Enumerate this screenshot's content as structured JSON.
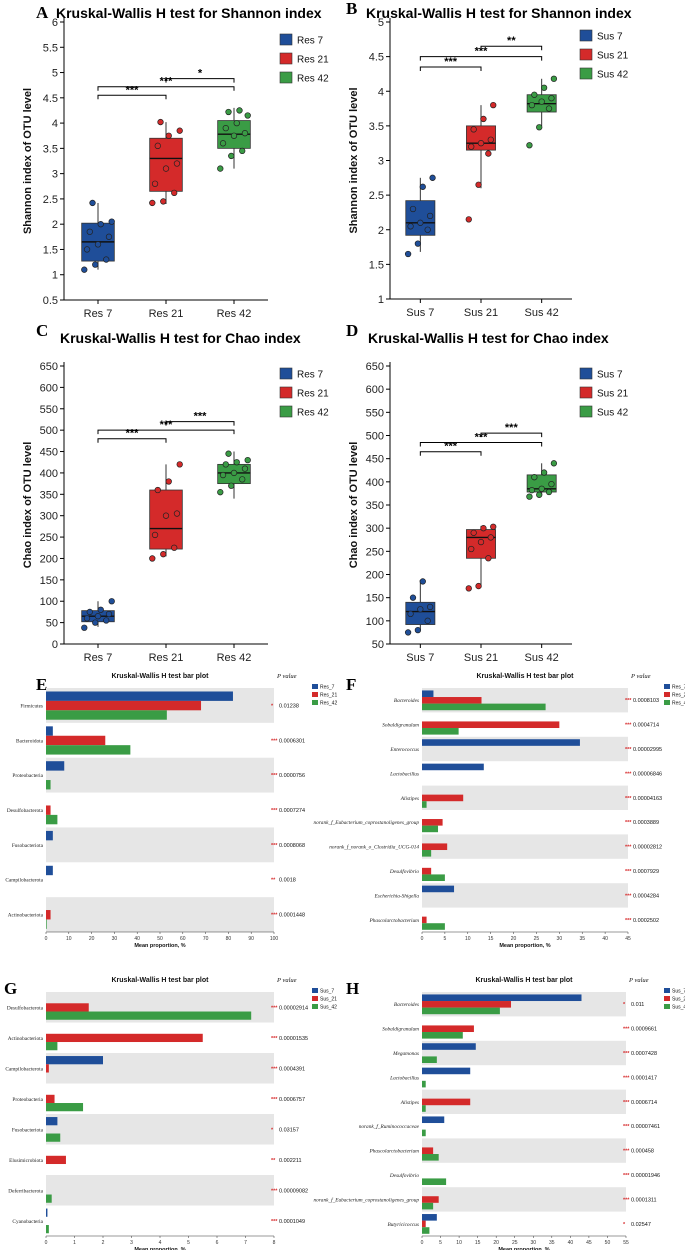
{
  "colors": {
    "day7": "#1f4e99",
    "day21": "#d42a2a",
    "day42": "#3a9c45",
    "grid_band": "#e6e6e6",
    "star": "#d62728"
  },
  "chart_data": [
    {
      "id": "A",
      "type": "box",
      "letter": "A",
      "title": "Kruskal-Wallis H test for Shannon index",
      "ylabel": "Shannon index of OTU level",
      "ylim": [
        0.5,
        6
      ],
      "yticks": [
        0.5,
        1,
        1.5,
        2,
        2.5,
        3,
        3.5,
        4,
        4.5,
        5,
        5.5,
        6
      ],
      "categories": [
        "Res 7",
        "Res 21",
        "Res 42"
      ],
      "legend": [
        "Res 7",
        "Res 21",
        "Res 42"
      ],
      "boxes": [
        {
          "min": 1.1,
          "q1": 1.27,
          "median": 1.65,
          "q3": 2.02,
          "max": 2.42,
          "points": [
            1.1,
            1.2,
            1.3,
            1.5,
            1.6,
            1.75,
            1.85,
            2.0,
            2.05,
            2.42
          ]
        },
        {
          "min": 2.4,
          "q1": 2.65,
          "median": 3.3,
          "q3": 3.7,
          "max": 4.02,
          "points": [
            2.42,
            2.45,
            2.62,
            2.8,
            3.1,
            3.2,
            3.55,
            3.75,
            3.85,
            4.02
          ]
        },
        {
          "min": 3.1,
          "q1": 3.5,
          "median": 3.78,
          "q3": 4.05,
          "max": 4.3,
          "points": [
            3.1,
            3.35,
            3.45,
            3.6,
            3.75,
            3.8,
            3.9,
            4.0,
            4.15,
            4.22,
            4.25
          ]
        }
      ],
      "sig": [
        {
          "from": 0,
          "to": 1,
          "label": "***",
          "y": 4.55
        },
        {
          "from": 0,
          "to": 2,
          "label": "***",
          "y": 4.72
        },
        {
          "from": 1,
          "to": 2,
          "label": "*",
          "y": 4.88
        }
      ]
    },
    {
      "id": "B",
      "type": "box",
      "letter": "B",
      "title": "Kruskal-Wallis H test for Shannon index",
      "ylabel": "Shannon index of OTU level",
      "ylim": [
        1,
        5
      ],
      "yticks": [
        1,
        1.5,
        2,
        2.5,
        3,
        3.5,
        4,
        4.5,
        5
      ],
      "categories": [
        "Sus 7",
        "Sus 21",
        "Sus 42"
      ],
      "legend": [
        "Sus 7",
        "Sus 21",
        "Sus 42"
      ],
      "boxes": [
        {
          "min": 1.68,
          "q1": 1.92,
          "median": 2.1,
          "q3": 2.42,
          "max": 2.75,
          "points": [
            1.65,
            1.8,
            2.0,
            2.05,
            2.1,
            2.2,
            2.3,
            2.62,
            2.75
          ]
        },
        {
          "min": 2.6,
          "q1": 3.15,
          "median": 3.25,
          "q3": 3.5,
          "max": 3.8,
          "points": [
            2.15,
            2.65,
            3.1,
            3.2,
            3.25,
            3.3,
            3.45,
            3.6,
            3.8
          ]
        },
        {
          "min": 3.5,
          "q1": 3.7,
          "median": 3.82,
          "q3": 3.95,
          "max": 4.18,
          "points": [
            3.22,
            3.48,
            3.75,
            3.8,
            3.85,
            3.9,
            3.95,
            4.05,
            4.18
          ]
        }
      ],
      "sig": [
        {
          "from": 0,
          "to": 1,
          "label": "***",
          "y": 4.35
        },
        {
          "from": 0,
          "to": 2,
          "label": "***",
          "y": 4.5
        },
        {
          "from": 1,
          "to": 2,
          "label": "**",
          "y": 4.65
        }
      ]
    },
    {
      "id": "C",
      "type": "box",
      "letter": "C",
      "title": "Kruskal-Wallis H test for Chao index",
      "ylabel": "Chao index of OTU level",
      "ylim": [
        0,
        650
      ],
      "yticks": [
        0,
        50,
        100,
        150,
        200,
        250,
        300,
        350,
        400,
        450,
        500,
        550,
        600,
        650
      ],
      "categories": [
        "Res 7",
        "Res 21",
        "Res 42"
      ],
      "legend": [
        "Res 7",
        "Res 21",
        "Res 42"
      ],
      "boxes": [
        {
          "min": 40,
          "q1": 52,
          "median": 65,
          "q3": 78,
          "max": 100,
          "points": [
            38,
            50,
            55,
            60,
            65,
            70,
            75,
            80,
            100
          ]
        },
        {
          "min": 205,
          "q1": 222,
          "median": 270,
          "q3": 360,
          "max": 420,
          "points": [
            200,
            210,
            225,
            255,
            300,
            305,
            360,
            380,
            420
          ]
        },
        {
          "min": 340,
          "q1": 375,
          "median": 400,
          "q3": 420,
          "max": 450,
          "points": [
            355,
            370,
            385,
            395,
            400,
            410,
            420,
            425,
            430,
            445
          ]
        }
      ],
      "sig": [
        {
          "from": 0,
          "to": 1,
          "label": "***",
          "y": 480
        },
        {
          "from": 0,
          "to": 2,
          "label": "***",
          "y": 500
        },
        {
          "from": 1,
          "to": 2,
          "label": "***",
          "y": 520
        }
      ]
    },
    {
      "id": "D",
      "type": "box",
      "letter": "D",
      "title": "Kruskal-Wallis H test for Chao index",
      "ylabel": "Chao index of OTU level",
      "ylim": [
        50,
        650
      ],
      "yticks": [
        50,
        100,
        150,
        200,
        250,
        300,
        350,
        400,
        450,
        500,
        550,
        600,
        650
      ],
      "categories": [
        "Sus 7",
        "Sus 21",
        "Sus 42"
      ],
      "legend": [
        "Sus 7",
        "Sus 21",
        "Sus 42"
      ],
      "boxes": [
        {
          "min": 80,
          "q1": 92,
          "median": 120,
          "q3": 140,
          "max": 188,
          "points": [
            75,
            80,
            100,
            115,
            125,
            130,
            150,
            185
          ]
        },
        {
          "min": 175,
          "q1": 235,
          "median": 280,
          "q3": 297,
          "max": 305,
          "points": [
            170,
            175,
            235,
            255,
            270,
            280,
            290,
            300,
            303
          ]
        },
        {
          "min": 372,
          "q1": 378,
          "median": 385,
          "q3": 415,
          "max": 440,
          "points": [
            368,
            372,
            378,
            382,
            385,
            395,
            410,
            420,
            440
          ]
        }
      ],
      "sig": [
        {
          "from": 0,
          "to": 1,
          "label": "***",
          "y": 465
        },
        {
          "from": 0,
          "to": 2,
          "label": "***",
          "y": 485
        },
        {
          "from": 1,
          "to": 2,
          "label": "***",
          "y": 505
        }
      ]
    },
    {
      "id": "E",
      "type": "bar",
      "letter": "E",
      "title": "Kruskal-Wallis H test bar plot",
      "pvalue_header": "P value",
      "xlabel": "Mean proportion, %",
      "xlim": [
        0,
        100
      ],
      "xticks": [
        0,
        10,
        20,
        30,
        40,
        50,
        60,
        70,
        80,
        90,
        100
      ],
      "series_names": [
        "Res_7",
        "Res_21",
        "Res_42"
      ],
      "categories": [
        "Firmicutes",
        "Bacteroidota",
        "Proteobacteria",
        "Desulfobacterota",
        "Fusobacteriota",
        "Campilobacterota",
        "Actinobacteriota"
      ],
      "values": [
        [
          82,
          68,
          53
        ],
        [
          3,
          26,
          37
        ],
        [
          8,
          0,
          2
        ],
        [
          0,
          2,
          5
        ],
        [
          3,
          0,
          0
        ],
        [
          3,
          0,
          0
        ],
        [
          0,
          2,
          0.3
        ]
      ],
      "pvalues": [
        "0.01238",
        "0.0006301",
        "0.0000756",
        "0.0007274",
        "0.0008068",
        "0.0018",
        "0.0001448"
      ],
      "stars": [
        "*",
        "***",
        "***",
        "***",
        "***",
        "**",
        "***"
      ]
    },
    {
      "id": "F",
      "type": "bar",
      "letter": "F",
      "title": "Kruskal-Wallis H test bar plot",
      "pvalue_header": "P value",
      "xlabel": "Mean proportion, %",
      "xlim": [
        0,
        45
      ],
      "xticks": [
        0,
        5,
        10,
        15,
        20,
        25,
        30,
        35,
        40,
        45
      ],
      "series_names": [
        "Res_7",
        "Res_21",
        "Res_42"
      ],
      "categories": [
        "Bacteroides",
        "Sobaldigranulum",
        "Enterococcus",
        "Lactobacillus",
        "Alistipes",
        "norank_f_Eubacterium_coprostanoligenes_group",
        "norank_f_norank_o_Clostridia_UCG-014",
        "Desulfovibrio",
        "Escherichia-Shigella",
        "Phascolarctobacterium"
      ],
      "values": [
        [
          2.5,
          13,
          27
        ],
        [
          0,
          30,
          8
        ],
        [
          34.5,
          0,
          0
        ],
        [
          13.5,
          0,
          0
        ],
        [
          0,
          9,
          1
        ],
        [
          0,
          4.5,
          3.5
        ],
        [
          0,
          5.5,
          2
        ],
        [
          0,
          2,
          5
        ],
        [
          7,
          0,
          0
        ],
        [
          0,
          1,
          5
        ]
      ],
      "pvalues": [
        "0.0008103",
        "0.0004714",
        "0.00002995",
        "0.00006846",
        "0.00004163",
        "0.0003889",
        "0.00002812",
        "0.0007929",
        "0.0004284",
        "0.0002502"
      ],
      "stars": [
        "***",
        "***",
        "***",
        "***",
        "***",
        "***",
        "***",
        "***",
        "***",
        "***"
      ]
    },
    {
      "id": "G",
      "type": "bar",
      "letter": "G",
      "title": "Kruskal-Wallis H test bar plot",
      "pvalue_header": "P value",
      "xlabel": "Mean proportion, %",
      "xlim": [
        0,
        8
      ],
      "xticks": [
        0,
        1,
        2,
        3,
        4,
        5,
        6,
        7,
        8
      ],
      "series_names": [
        "Sus_7",
        "Sus_21",
        "Sus_42"
      ],
      "categories": [
        "Desulfobacterota",
        "Actinobacteriota",
        "Campilobacterota",
        "Proteobacteria",
        "Fusobacteriota",
        "Elusimicrobiota",
        "Deferribacterota",
        "Cyanobacteria"
      ],
      "values": [
        [
          0,
          1.5,
          7.2
        ],
        [
          0,
          5.5,
          0.4
        ],
        [
          2,
          0.1,
          0
        ],
        [
          0,
          0.3,
          1.3
        ],
        [
          0.4,
          0,
          0.5
        ],
        [
          0,
          0.7,
          0
        ],
        [
          0,
          0,
          0.2
        ],
        [
          0.05,
          0,
          0.1
        ]
      ],
      "pvalues": [
        "0.00002914",
        "0.00001535",
        "0.0004391",
        "0.0006757",
        "0.03157",
        "0.002211",
        "0.00009082",
        "0.0001049"
      ],
      "stars": [
        "***",
        "***",
        "***",
        "***",
        "*",
        "**",
        "***",
        "***"
      ]
    },
    {
      "id": "H",
      "type": "bar",
      "letter": "H",
      "title": "Kruskal-Wallis H test bar plot",
      "pvalue_header": "P value",
      "xlabel": "Mean proportion, %",
      "xlim": [
        0,
        55
      ],
      "xticks": [
        0,
        5,
        10,
        15,
        20,
        25,
        30,
        35,
        40,
        45,
        50,
        55
      ],
      "series_names": [
        "Sus_7",
        "Sus_21",
        "Sus_42"
      ],
      "categories": [
        "Bacteroides",
        "Sobaldigranulum",
        "Megamonas",
        "Lactobacillus",
        "Alistipes",
        "norank_f_Ruminococcaceae",
        "Phascolarctobacterium",
        "Desulfovibrio",
        "norank_f_Eubacterium_coprostanoligenes_group",
        "Butyricicoccus"
      ],
      "values": [
        [
          43,
          24,
          21
        ],
        [
          0,
          14,
          11
        ],
        [
          14.5,
          0,
          4
        ],
        [
          13,
          0,
          1
        ],
        [
          0,
          13,
          1
        ],
        [
          6,
          0,
          1
        ],
        [
          0,
          3,
          4.5
        ],
        [
          0,
          0,
          6.5
        ],
        [
          0,
          4.5,
          3
        ],
        [
          4,
          1,
          2
        ]
      ],
      "pvalues": [
        "0.011",
        "0.0009661",
        "0.0007428",
        "0.0001417",
        "0.0006714",
        "0.00007461",
        "0.000458",
        "0.00001946",
        "0.0001311",
        "0.02547"
      ],
      "stars": [
        "*",
        "***",
        "***",
        "***",
        "***",
        "***",
        "***",
        "***",
        "***",
        "*"
      ]
    }
  ]
}
